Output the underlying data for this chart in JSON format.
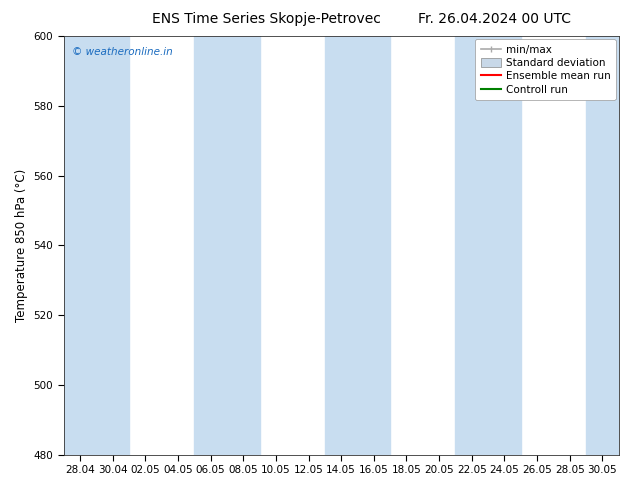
{
  "title_left": "ENS Time Series Skopje-Petrovec",
  "title_right": "Fr. 26.04.2024 00 UTC",
  "ylabel": "Temperature 850 hPa (°C)",
  "ylim": [
    480,
    600
  ],
  "yticks": [
    480,
    500,
    520,
    540,
    560,
    580,
    600
  ],
  "x_tick_labels": [
    "28.04",
    "30.04",
    "02.05",
    "04.05",
    "06.05",
    "08.05",
    "10.05",
    "12.05",
    "14.05",
    "16.05",
    "18.05",
    "20.05",
    "22.05",
    "24.05",
    "26.05",
    "28.05",
    "30.05"
  ],
  "background_color": "#ffffff",
  "plot_bg_color": "#ffffff",
  "band_color_dark": "#c8ddf0",
  "band_color_light": "#ddeaf8",
  "watermark_text": "© weatheronline.in",
  "watermark_color": "#1a6bbf",
  "legend_items": [
    {
      "label": "min/max",
      "color": "#aaaaaa",
      "style": "minmax"
    },
    {
      "label": "Standard deviation",
      "color": "#c8d8e8",
      "style": "box"
    },
    {
      "label": "Ensemble mean run",
      "color": "#ff0000",
      "style": "line"
    },
    {
      "label": "Controll run",
      "color": "#008000",
      "style": "line"
    }
  ],
  "title_fontsize": 10,
  "tick_fontsize": 7.5,
  "ylabel_fontsize": 8.5,
  "legend_fontsize": 7.5
}
